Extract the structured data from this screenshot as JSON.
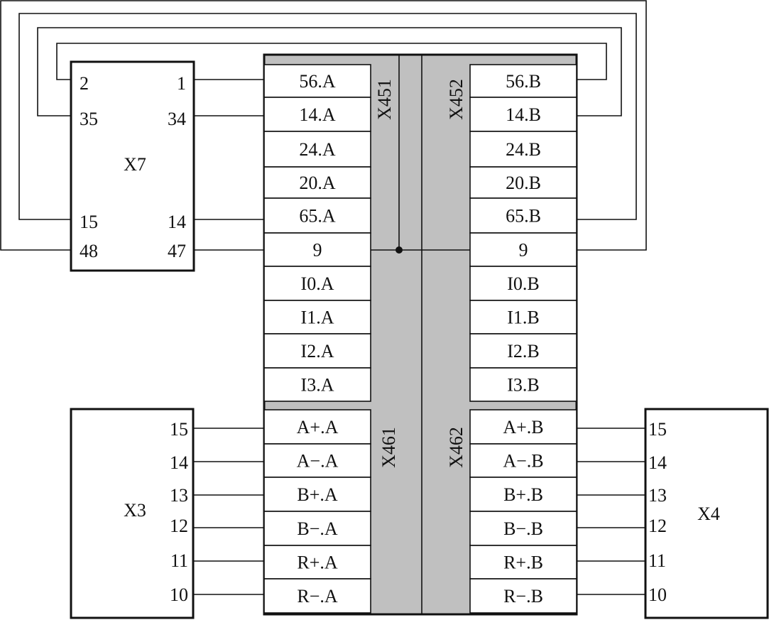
{
  "colors": {
    "line": "#111111",
    "terminal_block_fill": "#c0c0c0",
    "cell_fill": "#ffffff"
  },
  "x7": {
    "label": "X7",
    "pins_left": [
      "2",
      "35",
      "15",
      "48"
    ],
    "pins_right": [
      "1",
      "34",
      "14",
      "47"
    ]
  },
  "x3": {
    "label": "X3",
    "pins": [
      "15",
      "14",
      "13",
      "12",
      "11",
      "10"
    ]
  },
  "x4": {
    "label": "X4",
    "pins": [
      "15",
      "14",
      "13",
      "12",
      "11",
      "10"
    ]
  },
  "terminal_block": {
    "x451": {
      "label": "X451",
      "cells": [
        "56.A",
        "14.A",
        "24.A",
        "20.A",
        "65.A",
        "9",
        "I0.A",
        "I1.A",
        "I2.A",
        "I3.A"
      ]
    },
    "x452": {
      "label": "X452",
      "cells": [
        "56.B",
        "14.B",
        "24.B",
        "20.B",
        "65.B",
        "9",
        "I0.B",
        "I1.B",
        "I2.B",
        "I3.B"
      ]
    },
    "x461": {
      "label": "X461",
      "cells": [
        "A+.A",
        "A−.A",
        "B+.A",
        "B−.A",
        "R+.A",
        "R−.A"
      ]
    },
    "x462": {
      "label": "X462",
      "cells": [
        "A+.B",
        "A−.B",
        "B+.B",
        "B−.B",
        "R+.B",
        "R−.B"
      ]
    }
  }
}
